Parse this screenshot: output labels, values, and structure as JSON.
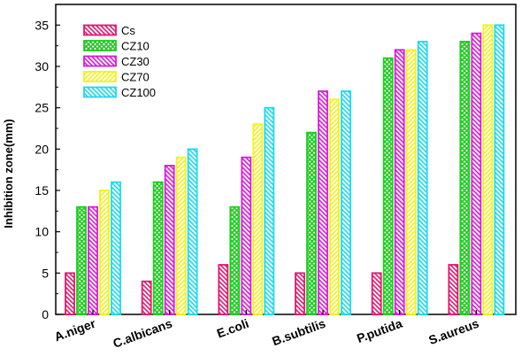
{
  "chart_data": {
    "type": "bar",
    "title": "",
    "xlabel": "",
    "ylabel": "Inhibition zone(mm)",
    "ylim": [
      0,
      37.5
    ],
    "yticks": [
      0,
      5,
      10,
      15,
      20,
      25,
      30,
      35
    ],
    "grid": false,
    "legend_position": "top-left",
    "categories": [
      "A.niger",
      "C.albicans",
      "E.coli",
      "B.subtilis",
      "P.putida",
      "S.aureus"
    ],
    "series": [
      {
        "name": "Cs",
        "color": "#e2176f",
        "pattern": "hatch-back",
        "values": [
          5,
          4,
          6,
          5,
          5,
          6
        ]
      },
      {
        "name": "CZ10",
        "color": "#1fcc1f",
        "pattern": "crosshatch",
        "values": [
          13,
          16,
          13,
          22,
          31,
          33
        ]
      },
      {
        "name": "CZ30",
        "color": "#d81bd8",
        "pattern": "hatch-back",
        "values": [
          13,
          18,
          19,
          27,
          32,
          34
        ]
      },
      {
        "name": "CZ70",
        "color": "#f2f21c",
        "pattern": "hatch-fwd",
        "values": [
          15,
          19,
          23,
          26,
          32,
          35
        ]
      },
      {
        "name": "CZ100",
        "color": "#1cd9ef",
        "pattern": "hatch-back",
        "values": [
          16,
          20,
          25,
          27,
          33,
          35
        ]
      }
    ]
  }
}
